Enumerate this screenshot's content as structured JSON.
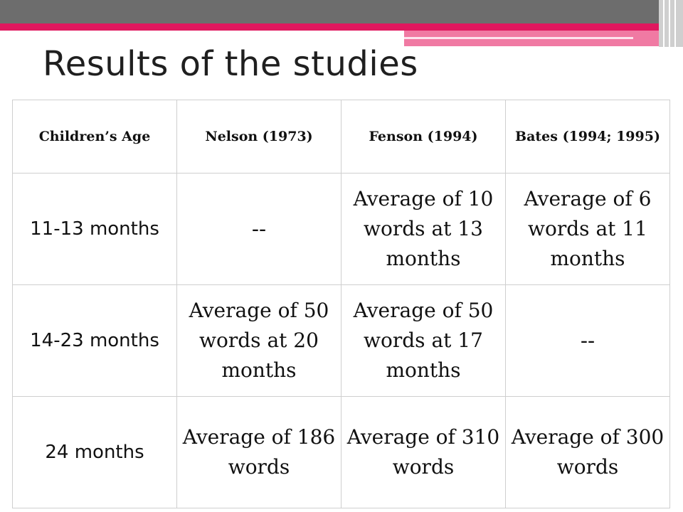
{
  "slide": {
    "title": "Results of the studies"
  },
  "table": {
    "headers": [
      "Children’s Age",
      "Nelson (1973)",
      "Fenson (1994)",
      "Bates (1994; 1995)"
    ],
    "rows": [
      [
        "11-13 months",
        "--",
        "Average of 10 words at 13 months",
        "Average of 6 words at 11 months"
      ],
      [
        "14-23 months",
        "Average of 50 words at 20 months",
        "Average of 50 words at 17 months",
        "--"
      ],
      [
        "24 months",
        "Average of 186 words",
        "Average of 310 words",
        "Average of 300 words"
      ]
    ]
  },
  "colors": {
    "header_bar": "#6d6d6d",
    "accent_pink": "#e0175e",
    "accent_light_pink": "#f07aa3"
  }
}
